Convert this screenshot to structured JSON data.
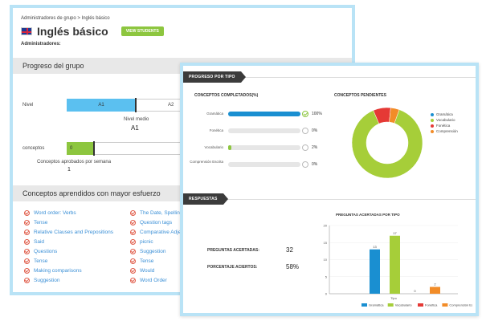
{
  "back": {
    "breadcrumb": "Administradores de grupo > Inglés básico",
    "title": "Inglés básico",
    "view_button": "VIEW STUDENTS",
    "admins_label": "Administradores:",
    "progress_section": "Progreso del grupo",
    "nivel_label": "Nivel",
    "nivel_bar": "A1",
    "nivel_next": "A2",
    "nivel_medio_label": "Nivel medio",
    "nivel_medio_value": "A1",
    "conceptos_label": "conceptos",
    "conceptos_bar": "0",
    "conceptos_semana_label": "Conceptos aprobados por semana",
    "conceptos_semana_value": "1",
    "concepts_section": "Conceptos aprendidos con mayor esfuerzo",
    "concepts_col1": [
      "Word order: Verbs",
      "Tense",
      "Relative Clauses and Prepositions",
      "Said",
      "Questions",
      "Tense",
      "Making comparisons",
      "Suggestion"
    ],
    "concepts_col2": [
      "The Date, Spelling N",
      "Question tags",
      "Comparative Adjec",
      "picnic",
      "Suggestion",
      "Tense",
      "Would",
      "Word Order"
    ]
  },
  "front": {
    "ribbon_progress": "PROGRESO POR TIPO",
    "completed_title": "CONCEPTOS COMPLETADOS(%)",
    "pending_title": "CONCEPTOS PENDIENTES",
    "progress_rows": [
      {
        "label": "Gramática",
        "pct": "100%",
        "value": 100,
        "color": "#1a8fd1"
      },
      {
        "label": "Fonética",
        "pct": "0%",
        "value": 0,
        "color": "#e53935"
      },
      {
        "label": "Vocabulario",
        "pct": "2%",
        "value": 2,
        "color": "#8dc63f"
      },
      {
        "label": "Comprensión Escrita",
        "pct": "0%",
        "value": 0,
        "color": "#f28c28"
      }
    ],
    "donut_legend": [
      {
        "name": "Gramática",
        "color": "#1a8fd1"
      },
      {
        "name": "Vocabulario",
        "color": "#a6ce39"
      },
      {
        "name": "Fonética",
        "color": "#e53935"
      },
      {
        "name": "Comprensión",
        "color": "#f28c28"
      }
    ],
    "ribbon_answers": "RESPUESTAS",
    "answers_label": "PREGUNTAS ACERTADAS:",
    "answers_value": "32",
    "percent_label": "PORCENTAJE ACIERTOS:",
    "percent_value": "58%",
    "bar_chart_title": "PREGUNTAS ACERTADAS POR TIPO",
    "bar_xlabel": "Tipo"
  },
  "chart_data": [
    {
      "type": "pie",
      "title": "CONCEPTOS PENDIENTES",
      "categories": [
        "Gramática",
        "Vocabulario",
        "Fonética",
        "Comprensión"
      ],
      "values": [
        0,
        88,
        8,
        4
      ],
      "colors": [
        "#1a8fd1",
        "#a6ce39",
        "#e53935",
        "#f28c28"
      ]
    },
    {
      "type": "bar",
      "title": "PREGUNTAS ACERTADAS POR TIPO",
      "xlabel": "Tipo",
      "categories": [
        "Gramática",
        "Vocabulario",
        "Fonética",
        "Comprensión Escrita"
      ],
      "values": [
        13,
        17,
        0,
        2
      ],
      "colors": [
        "#1a8fd1",
        "#a6ce39",
        "#e53935",
        "#f28c28"
      ],
      "ylim": [
        0,
        20
      ],
      "yticks": [
        0,
        5,
        10,
        15,
        20
      ]
    }
  ]
}
